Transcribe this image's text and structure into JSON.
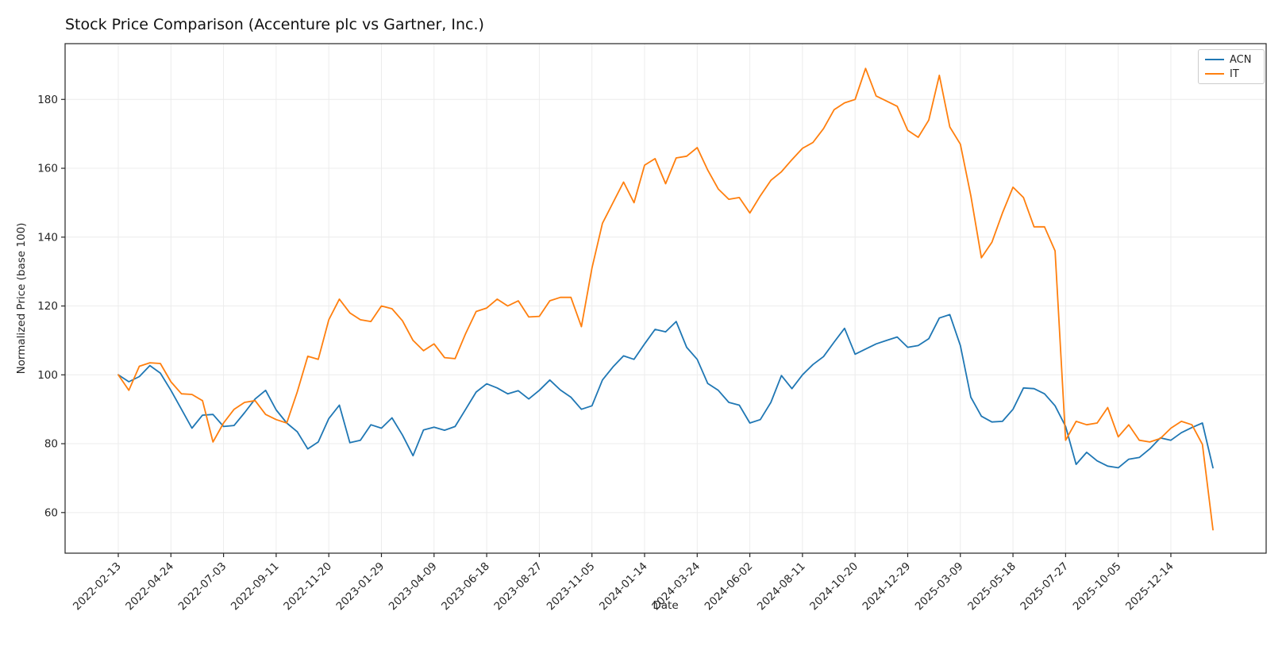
{
  "title": "Stock Price Comparison (Accenture plc vs Gartner, Inc.)",
  "chart_data": {
    "type": "line",
    "title": "Stock Price Comparison (Accenture plc vs Gartner, Inc.)",
    "xlabel": "Date",
    "ylabel": "Normalized Price (base 100)",
    "legend_position": "upper right",
    "grid": true,
    "ylim": [
      48.2,
      196.2
    ],
    "yticks": [
      60,
      80,
      100,
      120,
      140,
      160,
      180
    ],
    "xticks": [
      "2022-02-13",
      "2022-04-24",
      "2022-07-03",
      "2022-09-11",
      "2022-11-20",
      "2023-01-29",
      "2023-04-09",
      "2023-06-18",
      "2023-08-27",
      "2023-11-05",
      "2024-01-14",
      "2024-03-24",
      "2024-06-02",
      "2024-08-11",
      "2024-10-20",
      "2024-12-29",
      "2025-03-09",
      "2025-05-18",
      "2025-07-27",
      "2025-10-05",
      "2025-12-14"
    ],
    "x": [
      "2022-02-13",
      "2022-02-27",
      "2022-03-13",
      "2022-03-27",
      "2022-04-10",
      "2022-04-24",
      "2022-05-08",
      "2022-05-22",
      "2022-06-05",
      "2022-06-19",
      "2022-07-03",
      "2022-07-17",
      "2022-07-31",
      "2022-08-14",
      "2022-08-28",
      "2022-09-11",
      "2022-09-25",
      "2022-10-09",
      "2022-10-23",
      "2022-11-06",
      "2022-11-20",
      "2022-12-04",
      "2022-12-18",
      "2023-01-01",
      "2023-01-15",
      "2023-01-29",
      "2023-02-12",
      "2023-02-26",
      "2023-03-12",
      "2023-03-26",
      "2023-04-09",
      "2023-04-23",
      "2023-05-07",
      "2023-05-21",
      "2023-06-04",
      "2023-06-18",
      "2023-07-02",
      "2023-07-16",
      "2023-07-30",
      "2023-08-13",
      "2023-08-27",
      "2023-09-10",
      "2023-09-24",
      "2023-10-08",
      "2023-10-22",
      "2023-11-05",
      "2023-11-19",
      "2023-12-03",
      "2023-12-17",
      "2023-12-31",
      "2024-01-14",
      "2024-01-28",
      "2024-02-11",
      "2024-02-25",
      "2024-03-10",
      "2024-03-24",
      "2024-04-07",
      "2024-04-21",
      "2024-05-05",
      "2024-05-19",
      "2024-06-02",
      "2024-06-16",
      "2024-06-30",
      "2024-07-14",
      "2024-07-28",
      "2024-08-11",
      "2024-08-25",
      "2024-09-08",
      "2024-09-22",
      "2024-10-06",
      "2024-10-20",
      "2024-11-03",
      "2024-11-17",
      "2024-12-01",
      "2024-12-15",
      "2024-12-29",
      "2025-01-12",
      "2025-01-26",
      "2025-02-09",
      "2025-02-23",
      "2025-03-09",
      "2025-03-23",
      "2025-04-06",
      "2025-04-20",
      "2025-05-04",
      "2025-05-18",
      "2025-06-01",
      "2025-06-15",
      "2025-06-29",
      "2025-07-13",
      "2025-07-27",
      "2025-08-10",
      "2025-08-24",
      "2025-09-07",
      "2025-09-21",
      "2025-10-05",
      "2025-10-19",
      "2025-11-02",
      "2025-11-16",
      "2025-11-30",
      "2025-12-14",
      "2025-12-28",
      "2026-01-11",
      "2026-01-25",
      "2026-02-08"
    ],
    "series": [
      {
        "name": "ACN",
        "color": "#1f77b4",
        "values": [
          100,
          98,
          99.5,
          102.7,
          100.5,
          95.5,
          90,
          84.5,
          88.3,
          88.5,
          85,
          85.3,
          89,
          93,
          95.5,
          89.8,
          86,
          83.5,
          78.5,
          80.5,
          87.3,
          91.2,
          80.3,
          81,
          85.5,
          84.5,
          87.5,
          82.5,
          76.5,
          84,
          84.8,
          83.9,
          85,
          90,
          95,
          97.4,
          96.2,
          94.5,
          95.4,
          93,
          95.5,
          98.5,
          95.6,
          93.5,
          90,
          91,
          98.5,
          102.3,
          105.5,
          104.5,
          109,
          113.2,
          112.5,
          115.5,
          108,
          104.5,
          97.5,
          95.5,
          92,
          91.2,
          86,
          87,
          92,
          99.8,
          96,
          100,
          103,
          105.3,
          109.5,
          113.5,
          106,
          107.5,
          109,
          110,
          111,
          108,
          108.5,
          110.5,
          116.5,
          117.5,
          108.5,
          93.5,
          88,
          86.3,
          86.5,
          90,
          96.2,
          96,
          94.5,
          91,
          85,
          74,
          77.5,
          75,
          73.5,
          73,
          75.5,
          76,
          78.5,
          81.7,
          81,
          83.2,
          84.7,
          86,
          73
        ]
      },
      {
        "name": "IT",
        "color": "#ff7f0e",
        "values": [
          100,
          95.5,
          102.5,
          103.5,
          103.3,
          98,
          94.5,
          94.3,
          92.5,
          80.5,
          86,
          90,
          92,
          92.5,
          88.5,
          87,
          86,
          95,
          105.4,
          104.5,
          116,
          122,
          118,
          116,
          115.5,
          120,
          119.2,
          115.7,
          110,
          107,
          109,
          105,
          104.7,
          112,
          118.4,
          119.4,
          122,
          120,
          121.5,
          116.8,
          117,
          121.5,
          122.5,
          122.5,
          114,
          131,
          144,
          150,
          156,
          150,
          160.9,
          162.8,
          155.5,
          163,
          163.5,
          166,
          159.5,
          154,
          151,
          151.5,
          147,
          152,
          156.5,
          159,
          162.5,
          165.8,
          167.5,
          171.5,
          177,
          179,
          180,
          189,
          181,
          179.5,
          178,
          171,
          169,
          174,
          187,
          172,
          167,
          152,
          134,
          138.5,
          147,
          154.5,
          151.5,
          143,
          143,
          136,
          81,
          86.5,
          85.5,
          86,
          90.5,
          82,
          85.5,
          81,
          80.5,
          81.5,
          84.5,
          86.5,
          85.5,
          79.8,
          55
        ]
      }
    ]
  }
}
